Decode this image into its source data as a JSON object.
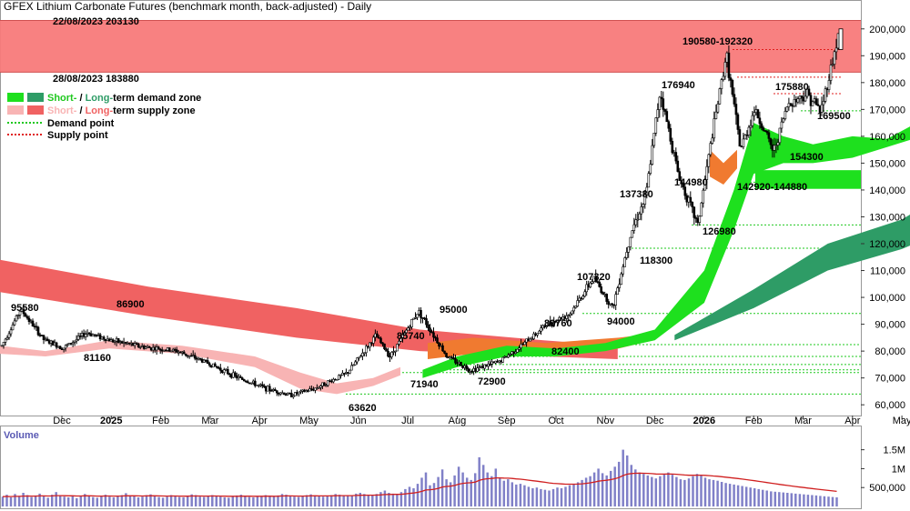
{
  "chart_data": [
    {
      "type": "candlestick",
      "title": "GFEX Lithium Carbonate Futures (benchmark month, back-adjusted) - Daily",
      "ylim": [
        56000,
        205000
      ],
      "y_ticks": [
        "60,000",
        "70,000",
        "80,000",
        "90,000",
        "100,000",
        "110,000",
        "120,000",
        "130,000",
        "140,000",
        "150,000",
        "160,000",
        "170,000",
        "180,000",
        "190,000",
        "200,000"
      ],
      "x_ticks": [
        "Dec",
        "2025",
        "Feb",
        "Mar",
        "Apr",
        "May",
        "Jun",
        "Jul",
        "Aug",
        "Sep",
        "Oct",
        "Nov",
        "Dec",
        "2026",
        "Feb",
        "Mar",
        "Apr",
        "May"
      ],
      "x_ticks_bold": [
        "2025",
        "2026"
      ],
      "legend": [
        {
          "label_a": "Short-",
          "label_b": " / ",
          "label_c": "Long-",
          "label_d": "term demand zone",
          "color_a": "#1ee01e",
          "color_b": "#2e9c66"
        },
        {
          "label_a": "Short-",
          "label_b": " / ",
          "label_c": "Long-",
          "label_d": "term supply zone",
          "color_a": "#f8b4b4",
          "color_b": "#f06262"
        },
        {
          "label": "Demand point",
          "color": "#1ec81e"
        },
        {
          "label": "Supply point",
          "color": "#e01e1e"
        }
      ],
      "supply_zone": {
        "low": 183880,
        "high": 203130,
        "label_high": "22/08/2023 203130",
        "label_low": "28/08/2023 183880",
        "color": "#f87a7a"
      },
      "demand_points": [
        64000,
        72000,
        73000,
        75000,
        78000,
        82400,
        94000,
        118300,
        126980,
        142920,
        154300,
        169500
      ],
      "supply_points": [
        175880,
        182000,
        192320
      ],
      "demand_zone_bar": {
        "low": 142920,
        "high": 144880,
        "label": "142920-144880",
        "color": "#1ee01e"
      },
      "annotations": [
        "95580",
        "81160",
        "86900",
        "63620",
        "85740",
        "71940",
        "95000",
        "72900",
        "89760",
        "82400",
        "107320",
        "94000",
        "118300",
        "137380",
        "176940",
        "144980",
        "126980",
        "190580-192320",
        "175880",
        "142920-144880",
        "154300",
        "169500"
      ],
      "series": [
        {
          "name": "Price",
          "x_months": [
            0,
            0.4,
            0.9,
            1.3,
            1.8,
            2.3,
            3,
            3.7,
            4.3,
            5,
            5.6,
            6.1,
            6.6,
            7.3,
            7.9,
            8.2,
            8.8,
            9.4,
            9.9,
            10.5,
            11,
            11.5,
            12,
            12.5,
            12.9,
            13.3,
            13.6,
            13.9,
            14.3,
            14.7,
            15,
            15.3,
            15.6,
            15.9,
            16.3,
            16.6,
            17,
            17.3,
            17.7
          ],
          "values": [
            82000,
            95580,
            84000,
            81160,
            86900,
            84000,
            81500,
            80000,
            76000,
            70000,
            66000,
            63620,
            66000,
            71940,
            85740,
            78000,
            95000,
            78000,
            72900,
            76000,
            82400,
            89760,
            94000,
            107320,
            96000,
            125000,
            137380,
            176940,
            144980,
            126980,
            160000,
            190580,
            155000,
            170000,
            154300,
            172000,
            175880,
            169500,
            200000
          ]
        }
      ],
      "long_term_supply_band": {
        "x_months": [
          0,
          3,
          6,
          8.5,
          11,
          12.5
        ],
        "upper": [
          114000,
          104000,
          96000,
          88000,
          84000,
          82000
        ],
        "lower": [
          102000,
          93000,
          85000,
          80000,
          78000,
          77000
        ]
      },
      "long_term_demand_band": {
        "x_months": [
          12.4,
          14,
          15.5,
          17,
          17.9
        ],
        "upper": [
          86000,
          103000,
          120000,
          129000,
          139000
        ],
        "lower": [
          84000,
          96000,
          110000,
          118000,
          125000
        ]
      },
      "short_term_demand_band": {
        "x_months": [
          7.3,
          8,
          9,
          10,
          11,
          12,
          13,
          13.6,
          14,
          14.6,
          15.2,
          16,
          16.7,
          17.4,
          17.9
        ],
        "upper": [
          73000,
          78000,
          82000,
          81000,
          83000,
          88000,
          110000,
          140000,
          165000,
          160000,
          157000,
          160000,
          159000,
          166000,
          176000
        ],
        "lower": [
          70000,
          74000,
          78000,
          78000,
          80000,
          84000,
          98000,
          125000,
          146000,
          150000,
          150000,
          152000,
          156000,
          160000,
          168000
        ]
      }
    },
    {
      "type": "bar",
      "title": "Volume",
      "y_ticks": [
        "1.5M",
        "1M",
        "500,000"
      ],
      "ylim": [
        0,
        1900000
      ],
      "values": [
        260000,
        310000,
        240000,
        330000,
        280000,
        360000,
        300000,
        250000,
        290000,
        340000,
        270000,
        230000,
        310000,
        380000,
        300000,
        260000,
        240000,
        290000,
        220000,
        270000,
        330000,
        280000,
        250000,
        230000,
        270000,
        310000,
        260000,
        240000,
        280000,
        300000,
        350000,
        290000,
        270000,
        240000,
        260000,
        300000,
        320000,
        280000,
        250000,
        230000,
        260000,
        300000,
        270000,
        250000,
        240000,
        280000,
        320000,
        300000,
        260000,
        250000,
        270000,
        300000,
        280000,
        260000,
        240000,
        230000,
        260000,
        290000,
        310000,
        270000,
        250000,
        240000,
        260000,
        280000,
        300000,
        270000,
        260000,
        290000,
        330000,
        310000,
        280000,
        260000,
        250000,
        270000,
        300000,
        320000,
        290000,
        270000,
        260000,
        280000,
        300000,
        330000,
        310000,
        290000,
        280000,
        300000,
        340000,
        360000,
        330000,
        310000,
        300000,
        330000,
        380000,
        420000,
        360000,
        340000,
        320000,
        380000,
        460000,
        520000,
        480000,
        600000,
        760000,
        900000,
        560000,
        620000,
        780000,
        980000,
        720000,
        640000,
        820000,
        1050000,
        900000,
        760000,
        700000,
        880000,
        1300000,
        1100000,
        900000,
        800000,
        1000000,
        760000,
        680000,
        720000,
        640000,
        580000,
        600000,
        560000,
        520000,
        480000,
        500000,
        460000,
        440000,
        420000,
        460000,
        500000,
        480000,
        520000,
        560000,
        600000,
        640000,
        700000,
        760000,
        800000,
        900000,
        1000000,
        880000,
        820000,
        940000,
        1050000,
        1180000,
        1500000,
        1350000,
        1100000,
        980000,
        900000,
        860000,
        820000,
        780000,
        740000,
        800000,
        860000,
        900000,
        840000,
        780000,
        720000,
        700000,
        740000,
        800000,
        860000,
        820000,
        760000,
        720000,
        700000,
        680000,
        650000,
        620000,
        600000,
        580000,
        560000,
        540000,
        520000,
        500000,
        480000,
        460000,
        440000,
        420000,
        400000,
        390000,
        380000,
        370000,
        360000,
        350000,
        340000,
        330000,
        320000,
        310000,
        300000,
        290000,
        280000,
        270000,
        260000,
        250000,
        240000
      ],
      "ma_line": {
        "name": "Volume average",
        "color": "#d02020"
      }
    }
  ]
}
